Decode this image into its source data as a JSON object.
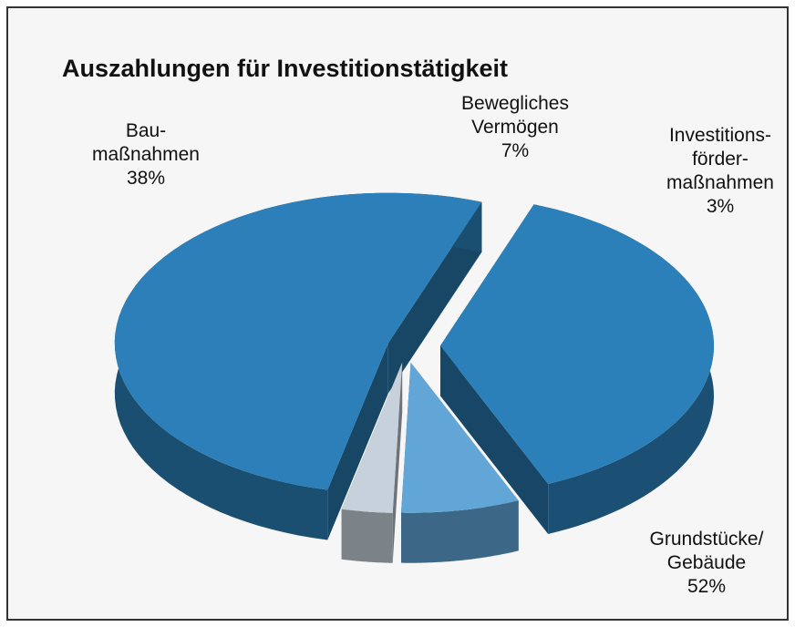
{
  "chart_data": {
    "type": "pie",
    "title": "Auszahlungen für Investitionstätigkeit",
    "categories": [
      "Bau-\nmaßnahmen",
      "Bewegliches\nVermögen",
      "Investitions-\nförder-\nmaßnahmen",
      "Grundstücke/\nGebäude"
    ],
    "values": [
      38,
      7,
      3,
      52
    ],
    "value_labels": [
      "38%",
      "7%",
      "3%",
      "52%"
    ],
    "colors": [
      "#2b80b9",
      "#62a6d8",
      "#c6d1dc",
      "#2c7fb8"
    ]
  }
}
